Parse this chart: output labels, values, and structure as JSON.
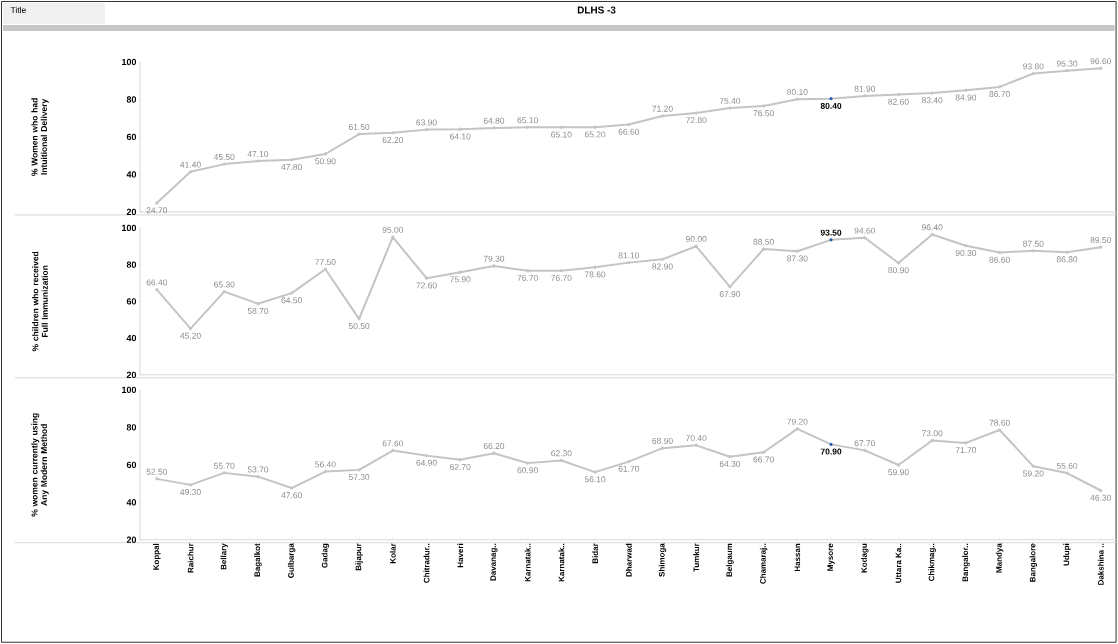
{
  "chart_data": [
    {
      "type": "line",
      "title": "DLHS -3",
      "annotations": [
        "Title"
      ],
      "ylabel": "% Women who had Intuitional Delivery",
      "color": "#c4c4c4",
      "marker": "circle",
      "tick_labels": "y",
      "ylim": [
        20,
        100
      ],
      "yticks": [
        20,
        40,
        60,
        80,
        100
      ],
      "categories": [
        null,
        null,
        null,
        null,
        null,
        null,
        null,
        null,
        null,
        null,
        null,
        null,
        null,
        null,
        null,
        null,
        null,
        null,
        null,
        null,
        null,
        null,
        null,
        null,
        null,
        null,
        null,
        null,
        null
      ],
      "values": [
        24.7,
        41.4,
        45.5,
        47.1,
        47.8,
        50.9,
        61.5,
        62.2,
        63.9,
        64.1,
        64.8,
        65.1,
        65.1,
        65.2,
        66.6,
        71.2,
        72.8,
        75.4,
        76.5,
        80.1,
        80.4,
        81.9,
        82.6,
        83.4,
        84.9,
        86.7,
        93.8,
        95.3,
        96.6
      ],
      "value_labels": [
        "24.70",
        "41.40",
        "45.50",
        "47.10",
        "47.80",
        "50.90",
        "61.50",
        "62.20",
        "63.90",
        "64.10",
        "64.80",
        "65.10",
        "65.10",
        "65.20",
        "66.60",
        "71.20",
        "72.80",
        "75.40",
        "76.50",
        "80.10",
        "**80.40**",
        "81.90",
        "82.60",
        "83.40",
        "84.90",
        "86.70",
        "93.80",
        "95.30",
        "96.60"
      ],
      "colors": [
        "#c4c4c4",
        "#c4c4c4",
        "#c4c4c4",
        "#c4c4c4",
        "#c4c4c4",
        "#c4c4c4",
        "#c4c4c4",
        "#c4c4c4",
        "#c4c4c4",
        "#c4c4c4",
        "#c4c4c4",
        "#c4c4c4",
        "#c4c4c4",
        "#c4c4c4",
        "#c4c4c4",
        "#c4c4c4",
        "#c4c4c4",
        "#c4c4c4",
        "#c4c4c4",
        "#c4c4c4",
        "#1f5da8",
        "#c4c4c4",
        "#c4c4c4",
        "#c4c4c4",
        "#c4c4c4",
        "#c4c4c4",
        "#c4c4c4",
        "#c4c4c4",
        "#c4c4c4"
      ]
    },
    {
      "type": "line",
      "ylabel": "% children who received Full Immunization",
      "color": "#c4c4c4",
      "marker": "circle",
      "tick_labels": "y",
      "ylim": [
        20,
        100
      ],
      "yticks": [
        20,
        40,
        60,
        80,
        100
      ],
      "categories": [
        null,
        null,
        null,
        null,
        null,
        null,
        null,
        null,
        null,
        null,
        null,
        null,
        null,
        null,
        null,
        null,
        null,
        null,
        null,
        null,
        null,
        null,
        null,
        null,
        null,
        null,
        null,
        null,
        null
      ],
      "values": [
        66.4,
        45.2,
        65.3,
        58.7,
        64.5,
        77.5,
        50.5,
        95.0,
        72.6,
        75.9,
        79.3,
        76.7,
        76.7,
        78.6,
        81.1,
        82.9,
        90.0,
        67.9,
        88.5,
        87.3,
        93.5,
        94.6,
        80.9,
        96.4,
        90.3,
        86.6,
        87.5,
        86.8,
        89.5
      ],
      "value_labels": [
        "66.40",
        "45.20",
        "65.30",
        "58.70",
        "64.50",
        "77.50",
        "50.50",
        "95.00",
        "72.60",
        "75.90",
        "79.30",
        "76.70",
        "76.70",
        "78.60",
        "81.10",
        "82.90",
        "90.00",
        "67.90",
        "88.50",
        "87.30",
        "**93.50**",
        "94.60",
        "80.90",
        "96.40",
        "90.30",
        "86.60",
        "87.50",
        "86.80",
        "89.50"
      ],
      "colors": [
        "#c4c4c4",
        "#c4c4c4",
        "#c4c4c4",
        "#c4c4c4",
        "#c4c4c4",
        "#c4c4c4",
        "#c4c4c4",
        "#c4c4c4",
        "#c4c4c4",
        "#c4c4c4",
        "#c4c4c4",
        "#c4c4c4",
        "#c4c4c4",
        "#c4c4c4",
        "#c4c4c4",
        "#c4c4c4",
        "#c4c4c4",
        "#c4c4c4",
        "#c4c4c4",
        "#c4c4c4",
        "#1f5da8",
        "#c4c4c4",
        "#c4c4c4",
        "#c4c4c4",
        "#c4c4c4",
        "#c4c4c4",
        "#c4c4c4",
        "#c4c4c4",
        "#c4c4c4"
      ]
    },
    {
      "type": "line",
      "ylabel": "% women currently using Any Modern Method",
      "color": "#c4c4c4",
      "marker": "circle",
      "ylim": [
        20,
        100
      ],
      "yticks": [
        20,
        40,
        60,
        80,
        100
      ],
      "categories": [
        "Koppal",
        "Raichur",
        "Bellary",
        "Bagalkot",
        "Gulbarga",
        "Gadag",
        "Bijapur",
        "Kolar",
        "Chitradur..",
        "Haveri",
        "Davanag..",
        "Karnatak..",
        "Karnatak..",
        "Bidar",
        "Dharwad",
        "Shimoga",
        "Tumkur",
        "Belgaum",
        "Chamaraj..",
        "Hassan",
        "Mysore",
        "Kodagu",
        "Uttara Ka..",
        "Chikmag..",
        "Bangalor..",
        "Mandya",
        "Bangalore",
        "Udupi",
        "Dakshina .."
      ],
      "values": [
        52.5,
        49.3,
        55.7,
        53.7,
        47.6,
        56.4,
        57.3,
        67.6,
        64.9,
        62.7,
        66.2,
        60.9,
        62.3,
        56.1,
        61.7,
        68.9,
        70.4,
        64.3,
        66.7,
        79.2,
        70.9,
        67.7,
        59.9,
        73.0,
        71.7,
        78.6,
        59.2,
        55.6,
        46.3
      ],
      "value_labels": [
        "52.50",
        "49.30",
        "55.70",
        "53.70",
        "47.60",
        "56.40",
        "57.30",
        "67.60",
        "64.90",
        "62.70",
        "66.20",
        "60.90",
        "62.30",
        "56.10",
        "61.70",
        "68.90",
        "70.40",
        "64.30",
        "66.70",
        "79.20",
        "**70.90**",
        "67.70",
        "59.90",
        "73.00",
        "71.70",
        "78.60",
        "59.20",
        "55.60",
        "46.30"
      ],
      "colors": [
        "#c4c4c4",
        "#c4c4c4",
        "#c4c4c4",
        "#c4c4c4",
        "#c4c4c4",
        "#c4c4c4",
        "#c4c4c4",
        "#c4c4c4",
        "#c4c4c4",
        "#c4c4c4",
        "#c4c4c4",
        "#c4c4c4",
        "#c4c4c4",
        "#c4c4c4",
        "#c4c4c4",
        "#c4c4c4",
        "#c4c4c4",
        "#c4c4c4",
        "#c4c4c4",
        "#c4c4c4",
        "#1f5da8",
        "#c4c4c4",
        "#c4c4c4",
        "#c4c4c4",
        "#c4c4c4",
        "#c4c4c4",
        "#c4c4c4",
        "#c4c4c4",
        "#c4c4c4"
      ]
    }
  ]
}
